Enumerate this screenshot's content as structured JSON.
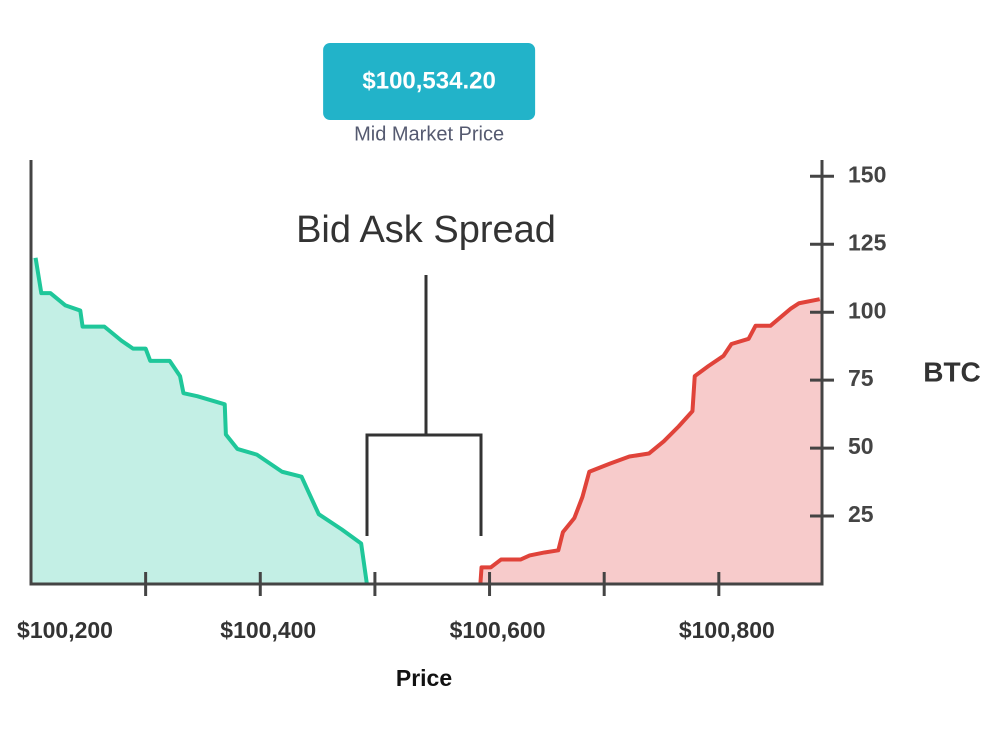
{
  "chart_data": {
    "type": "area",
    "annotation": "Bid Ask Spread",
    "mid_price": {
      "value": 100534.2,
      "label": "$100,534.20",
      "caption": "Mid Market Price"
    },
    "x_label": "Price",
    "y_label": "BTC",
    "xlim": [
      100200,
      100890
    ],
    "xticks": [
      {
        "value": 100200,
        "label": "$100,200"
      },
      {
        "value": 100400,
        "label": "$100,400"
      },
      {
        "value": 100600,
        "label": "$100,600"
      },
      {
        "value": 100800,
        "label": "$100,800"
      }
    ],
    "xminorticks": [
      100300,
      100500,
      100700
    ],
    "ylim": [
      0,
      156
    ],
    "yticks": [
      25,
      50,
      75,
      100,
      125,
      150
    ],
    "series": [
      {
        "color": "#1fc79a",
        "fill": "#c3efe5",
        "x": [
          100204,
          100209,
          100217,
          100230,
          100243,
          100245,
          100264,
          100279,
          100289,
          100300,
          100304,
          100321,
          100330,
          100333,
          100345,
          100369,
          100370,
          100380,
          100397,
          100419,
          100436,
          100442,
          100451,
          100471,
          100488,
          100493
        ],
        "values": [
          120,
          107,
          107,
          102.5,
          100.6,
          94.7,
          94.7,
          89.5,
          86.6,
          86.6,
          82.1,
          82.1,
          76.5,
          70.2,
          69.1,
          66.1,
          55,
          49.7,
          47.6,
          41.3,
          39.5,
          33.9,
          25.7,
          20.1,
          14.9,
          0
        ]
      },
      {
        "color": "#e0433a",
        "fill": "#f7cbcb",
        "x": [
          100592,
          100593,
          100601,
          100610,
          100627,
          100635,
          100648,
          100660,
          100664,
          100674,
          100681,
          100687,
          100705,
          100722,
          100739,
          100752,
          100765,
          100777,
          100779,
          100791,
          100804,
          100811,
          100826,
          100832,
          100845,
          100863,
          100870,
          100888
        ],
        "values": [
          0,
          6.1,
          6.1,
          9,
          9,
          10.5,
          11.6,
          12.4,
          19.1,
          24.3,
          32,
          41.3,
          44.3,
          46.9,
          48,
          52.5,
          58,
          63.6,
          76.5,
          80.2,
          83.9,
          88.3,
          90.2,
          95,
          95,
          101.4,
          103.3,
          104.8
        ]
      }
    ]
  }
}
